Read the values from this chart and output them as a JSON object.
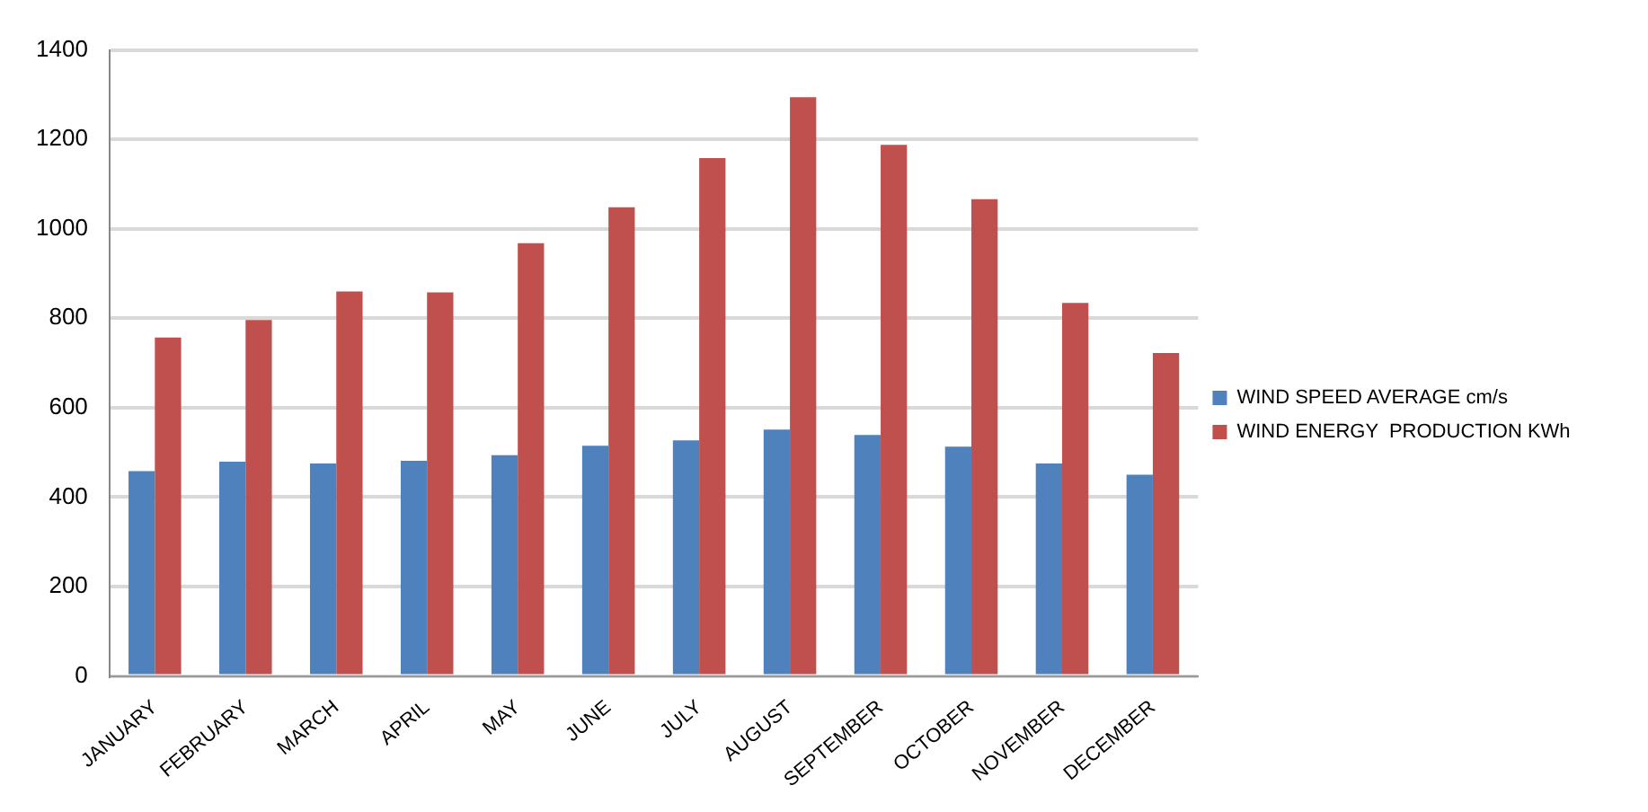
{
  "chart_data": {
    "type": "bar",
    "categories": [
      "JANUARY",
      "FEBRUARY",
      "MARCH",
      "APRIL",
      "MAY",
      "JUNE",
      "JULY",
      "AUGUST",
      "SEPTEMBER",
      "OCTOBER",
      "NOVEMBER",
      "DECEMBER"
    ],
    "series": [
      {
        "name": "WIND SPEED AVERAGE cm/s",
        "color": "#4f81bd",
        "values": [
          458,
          479,
          475,
          481,
          494,
          515,
          527,
          551,
          539,
          513,
          475,
          450
        ]
      },
      {
        "name": "WIND ENERGY  PRODUCTION KWh",
        "color": "#c0504d",
        "values": [
          757,
          796,
          860,
          858,
          968,
          1048,
          1158,
          1294,
          1188,
          1066,
          834,
          722
        ]
      }
    ],
    "ylim": [
      0,
      1400
    ],
    "yticks": [
      0,
      200,
      400,
      600,
      800,
      1000,
      1200,
      1400
    ],
    "grid": "y",
    "legend": "right"
  }
}
